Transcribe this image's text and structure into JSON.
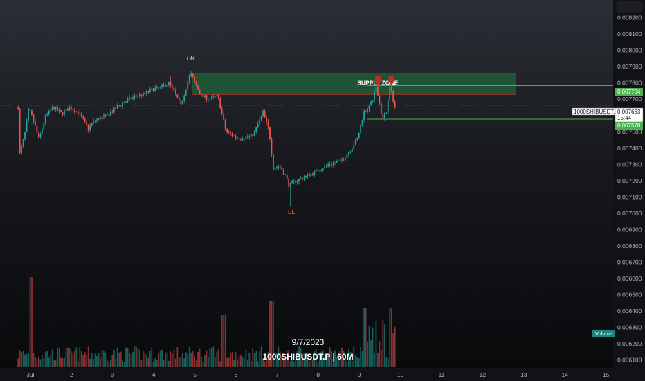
{
  "chart_data": {
    "type": "candlestick",
    "symbol": "1000SHIBUSDT.P",
    "interval": "60M",
    "watermark_date": "9/7/2023",
    "watermark_symbol": "1000SHIBUSDT.P | 60M",
    "y_ticks": [
      "0.008200",
      "0.008100",
      "0.008000",
      "0.007900",
      "0.007800",
      "0.007700",
      "0.007600",
      "0.007500",
      "0.007400",
      "0.007300",
      "0.007200",
      "0.007100",
      "0.007000",
      "0.006900",
      "0.006800",
      "0.006700",
      "0.006600",
      "0.006500",
      "0.006400",
      "0.006300",
      "0.006200",
      "0.006100"
    ],
    "ylim": [
      0.00606,
      0.008275
    ],
    "x_ticks": [
      "Jul",
      "2",
      "3",
      "4",
      "5",
      "6",
      "7",
      "8",
      "9",
      "10",
      "11",
      "12",
      "13",
      "14",
      "15"
    ],
    "current_price": "0.007663",
    "countdown": "15:44",
    "levels": [
      {
        "label": "0.007784",
        "value": 0.007784,
        "color": "#4caf50"
      },
      {
        "label": "0.007578",
        "value": 0.007578,
        "color": "#4caf50"
      }
    ],
    "supply_zone": {
      "label": "SUPPLY ZONE",
      "top": 0.00786,
      "bottom": 0.00773,
      "color": "#1f5c36",
      "border": "#c0392b"
    },
    "annotations": [
      {
        "text": "LH",
        "day": 4.9,
        "price": 0.00794
      },
      {
        "text": "LL",
        "day": 7.33,
        "price": 0.006995
      }
    ],
    "volume_label": "Volume",
    "colors": {
      "up": "#26a69a",
      "down": "#ef5350",
      "background": "#131722"
    }
  }
}
